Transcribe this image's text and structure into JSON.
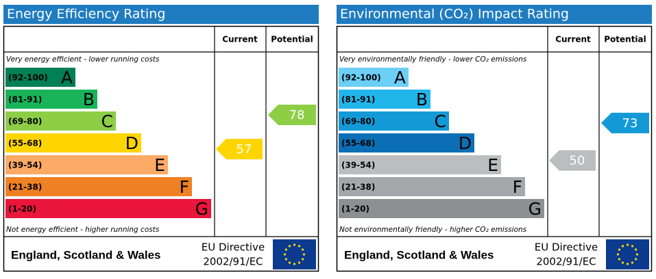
{
  "panels": [
    {
      "title": "Energy Efficiency Rating",
      "header": {
        "current": "Current",
        "potential": "Potential"
      },
      "top_note": "Very energy efficient - lower running costs",
      "bottom_note": "Not energy efficient - higher running costs",
      "bands": [
        {
          "range": "(92-100)",
          "letter": "A",
          "color": "#008054"
        },
        {
          "range": "(81-91)",
          "letter": "B",
          "color": "#19b459"
        },
        {
          "range": "(69-80)",
          "letter": "C",
          "color": "#8dce46"
        },
        {
          "range": "(55-68)",
          "letter": "D",
          "color": "#ffd500"
        },
        {
          "range": "(39-54)",
          "letter": "E",
          "color": "#fcaa65"
        },
        {
          "range": "(21-38)",
          "letter": "F",
          "color": "#ef8023"
        },
        {
          "range": "(1-20)",
          "letter": "G",
          "color": "#e9153b"
        }
      ],
      "current": {
        "value": 57,
        "color": "#ffd500"
      },
      "potential": {
        "value": 78,
        "color": "#8dce46"
      },
      "footer": {
        "region": "England, Scotland & Wales",
        "directive_1": "EU Directive",
        "directive_2": "2002/91/EC"
      }
    },
    {
      "title": "Environmental (CO₂) Impact Rating",
      "header": {
        "current": "Current",
        "potential": "Potential"
      },
      "top_note": "Very environmentally friendly - lower CO₂ emissions",
      "bottom_note": "Not environmentally friendly - higher CO₂ emissions",
      "bands": [
        {
          "range": "(92-100)",
          "letter": "A",
          "color": "#6ccff6"
        },
        {
          "range": "(81-91)",
          "letter": "B",
          "color": "#22b5ea"
        },
        {
          "range": "(69-80)",
          "letter": "C",
          "color": "#139ad6"
        },
        {
          "range": "(55-68)",
          "letter": "D",
          "color": "#0c6fb6"
        },
        {
          "range": "(39-54)",
          "letter": "E",
          "color": "#bbbdbf"
        },
        {
          "range": "(21-38)",
          "letter": "F",
          "color": "#a5a7aa"
        },
        {
          "range": "(1-20)",
          "letter": "G",
          "color": "#8d8f92"
        }
      ],
      "current": {
        "value": 50,
        "color": "#bbbdbf"
      },
      "potential": {
        "value": 73,
        "color": "#139ad6"
      },
      "footer": {
        "region": "England, Scotland & Wales",
        "directive_1": "EU Directive",
        "directive_2": "2002/91/EC"
      }
    }
  ]
}
